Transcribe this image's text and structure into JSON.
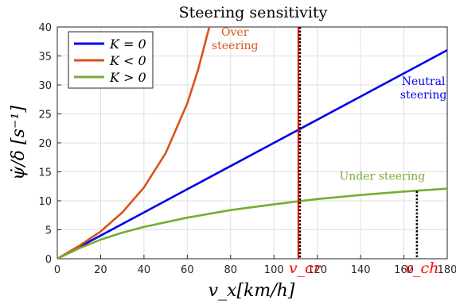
{
  "chart_data": {
    "type": "line",
    "title": "Steering sensitivity",
    "xlabel": "v_x[km/h]",
    "ylabel": "ψ̇/δ [s⁻¹]",
    "xlim": [
      0,
      180
    ],
    "ylim": [
      0,
      40
    ],
    "xticks": [
      0,
      20,
      40,
      60,
      80,
      100,
      120,
      140,
      160,
      180
    ],
    "yticks": [
      0,
      5,
      10,
      15,
      20,
      25,
      30,
      35,
      40
    ],
    "grid": true,
    "legend_position": "top-left",
    "series": [
      {
        "name": "K = 0",
        "color": "#0000ee",
        "x": [
          0,
          20,
          40,
          60,
          80,
          100,
          120,
          140,
          160,
          180
        ],
        "y": [
          0,
          4,
          8,
          12,
          16,
          20,
          24,
          28,
          32,
          36
        ]
      },
      {
        "name": "K < 0",
        "color": "#d95319",
        "x": [
          0,
          10,
          20,
          30,
          40,
          50,
          60,
          65,
          70,
          72
        ],
        "y": [
          0,
          2.2,
          4.7,
          8.0,
          12.3,
          18.2,
          26.8,
          32.6,
          39.8,
          43.8
        ]
      },
      {
        "name": "K > 0",
        "color": "#77ac30",
        "x": [
          0,
          10,
          20,
          30,
          40,
          60,
          80,
          100,
          120,
          140,
          160,
          180
        ],
        "y": [
          0,
          1.8,
          3.3,
          4.5,
          5.5,
          7.1,
          8.4,
          9.4,
          10.3,
          11.0,
          11.6,
          12.1
        ]
      }
    ],
    "vertical_markers": [
      {
        "label": "v_cr",
        "x": 112,
        "color_line": "#000000",
        "color_shadow": "#ff0000",
        "y_top": 40
      },
      {
        "label": "v_ch",
        "x": 166,
        "color_line": "#000000",
        "y_top": 11.7
      }
    ],
    "annotations": [
      {
        "lines": [
          "Over",
          "steering"
        ],
        "color": "#d95319",
        "x": 82,
        "y": 38.5
      },
      {
        "lines": [
          "Neutral",
          "steering"
        ],
        "color": "#0000ee",
        "x": 169,
        "y": 30
      },
      {
        "lines": [
          "Under steering"
        ],
        "color": "#77ac30",
        "x": 150,
        "y": 13.6
      }
    ]
  }
}
